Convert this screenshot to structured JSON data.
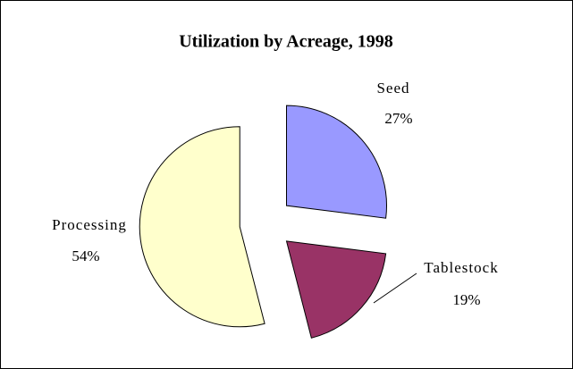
{
  "chart_data": {
    "type": "pie",
    "title": "Utilization by Acreage, 1998",
    "categories": [
      "Seed",
      "Tablestock",
      "Processing"
    ],
    "values": [
      27,
      19,
      54
    ],
    "value_labels": [
      "27%",
      "19%",
      "54%"
    ],
    "colors": [
      "#9999ff",
      "#993366",
      "#ffffcc"
    ]
  }
}
